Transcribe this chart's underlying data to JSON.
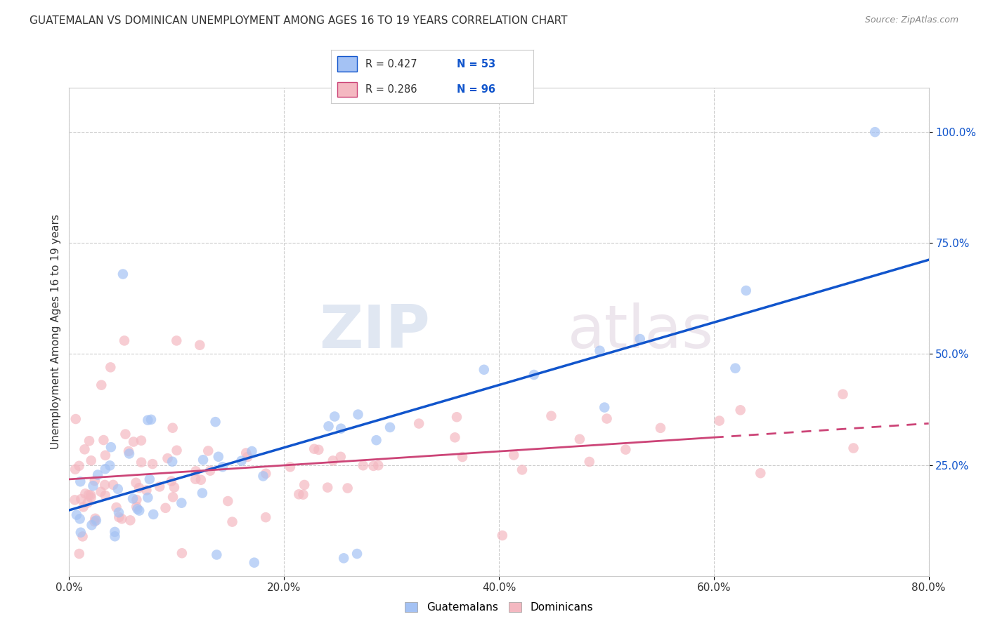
{
  "title": "GUATEMALAN VS DOMINICAN UNEMPLOYMENT AMONG AGES 16 TO 19 YEARS CORRELATION CHART",
  "source": "Source: ZipAtlas.com",
  "ylabel": "Unemployment Among Ages 16 to 19 years",
  "x_tick_values": [
    0,
    20,
    40,
    60,
    80
  ],
  "y_tick_values": [
    25,
    50,
    75,
    100
  ],
  "xlim": [
    0,
    80
  ],
  "ylim": [
    0,
    110
  ],
  "blue_color": "#a4c2f4",
  "blue_line_color": "#1155cc",
  "pink_color": "#f4b8c1",
  "pink_line_color": "#cc4477",
  "watermark_zip": "ZIP",
  "watermark_atlas": "atlas",
  "title_fontsize": 11,
  "source_fontsize": 9,
  "legend_r_guat": "R = 0.427",
  "legend_n_guat": "N = 53",
  "legend_r_dom": "R = 0.286",
  "legend_n_dom": "N = 96",
  "blue_line_intercept": 15.0,
  "blue_line_slope": 0.65,
  "pink_line_intercept": 20.0,
  "pink_line_slope": 0.22,
  "pink_dash_start": 60
}
